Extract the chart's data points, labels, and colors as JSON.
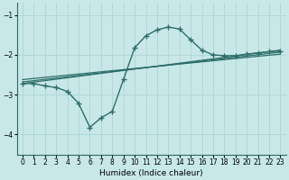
{
  "xlabel": "Humidex (Indice chaleur)",
  "bg_color": "#c8e8e8",
  "grid_color": "#b0d8d8",
  "line_color": "#2d6e6a",
  "xlim": [
    -0.5,
    23.5
  ],
  "ylim": [
    -4.5,
    -0.7
  ],
  "xticks": [
    0,
    1,
    2,
    3,
    4,
    5,
    6,
    7,
    8,
    9,
    10,
    11,
    12,
    13,
    14,
    15,
    16,
    17,
    18,
    19,
    20,
    21,
    22,
    23
  ],
  "yticks": [
    -4,
    -3,
    -2,
    -1
  ],
  "curve": {
    "x": [
      0,
      1,
      2,
      3,
      4,
      5,
      6,
      7,
      8,
      9,
      10,
      11,
      12,
      13,
      14,
      15,
      16,
      17,
      18,
      19,
      20,
      21,
      22,
      23
    ],
    "y": [
      -2.72,
      -2.72,
      -2.78,
      -2.82,
      -2.92,
      -3.22,
      -3.82,
      -3.58,
      -3.42,
      -2.62,
      -1.82,
      -1.52,
      -1.37,
      -1.3,
      -1.35,
      -1.62,
      -1.88,
      -2.0,
      -2.02,
      -2.02,
      -1.98,
      -1.95,
      -1.92,
      -1.9
    ]
  },
  "straight_lines": [
    {
      "x": [
        0,
        23
      ],
      "y": [
        -2.72,
        -1.88
      ]
    },
    {
      "x": [
        0,
        23
      ],
      "y": [
        -2.68,
        -1.93
      ]
    },
    {
      "x": [
        0,
        23
      ],
      "y": [
        -2.62,
        -1.98
      ]
    }
  ]
}
